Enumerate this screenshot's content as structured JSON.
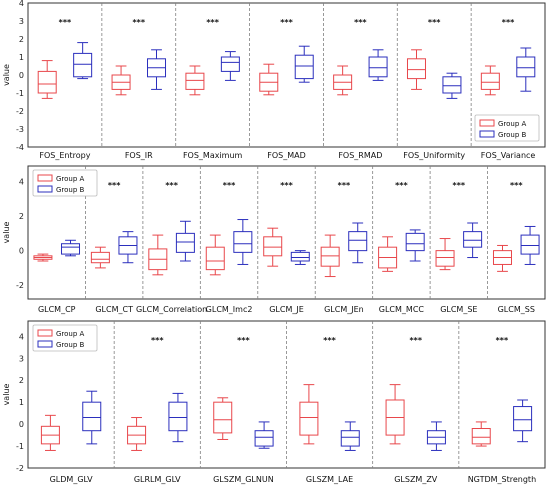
{
  "colors": {
    "group_a": "#e8474b",
    "group_b": "#2b2fbd"
  },
  "chart_data": [
    {
      "type": "box",
      "ylabel": "value",
      "ylim": [
        -4,
        4
      ],
      "yticks": [
        -4,
        -3,
        -2,
        -1,
        0,
        1,
        2,
        3,
        4
      ],
      "legend": {
        "placement": "bottom-right",
        "entries": [
          "Group A",
          "Group B"
        ]
      },
      "categories": [
        "FOS_Entropy",
        "FOS_IR",
        "FOS_Maximum",
        "FOS_MAD",
        "FOS_RMAD",
        "FOS_Uniformity",
        "FOS_Variance"
      ],
      "significance": [
        "***",
        "***",
        "***",
        "***",
        "***",
        "***",
        "***"
      ],
      "series": [
        {
          "name": "Group A",
          "boxes": [
            [
              -1.3,
              -1.0,
              -0.5,
              0.2,
              0.8
            ],
            [
              -1.1,
              -0.8,
              -0.4,
              0.0,
              0.5
            ],
            [
              -1.1,
              -0.8,
              -0.3,
              0.1,
              0.5
            ],
            [
              -1.1,
              -0.9,
              -0.4,
              0.1,
              0.6
            ],
            [
              -1.1,
              -0.8,
              -0.4,
              0.0,
              0.5
            ],
            [
              -0.8,
              -0.2,
              0.3,
              0.9,
              1.4
            ],
            [
              -1.1,
              -0.8,
              -0.4,
              0.1,
              0.5
            ]
          ]
        },
        {
          "name": "Group B",
          "boxes": [
            [
              -0.2,
              -0.1,
              0.6,
              1.2,
              1.8
            ],
            [
              -0.8,
              -0.1,
              0.4,
              0.9,
              1.4
            ],
            [
              -0.3,
              0.2,
              0.7,
              1.0,
              1.3
            ],
            [
              -0.4,
              -0.2,
              0.5,
              1.1,
              1.6
            ],
            [
              -0.3,
              -0.1,
              0.4,
              1.0,
              1.4
            ],
            [
              -1.3,
              -1.0,
              -0.6,
              -0.1,
              0.1
            ],
            [
              -0.9,
              -0.1,
              0.4,
              1.0,
              1.5
            ]
          ]
        }
      ]
    },
    {
      "type": "box",
      "ylabel": "value",
      "ylim": [
        -2.8,
        4.9
      ],
      "yticks": [
        -2,
        0,
        2,
        4
      ],
      "legend": {
        "placement": "top-left",
        "entries": [
          "Group A",
          "Group B"
        ]
      },
      "categories": [
        "GLCM_CP",
        "GLCM_CT",
        "GLCM_Correlation",
        "GLCM_Imc2",
        "GLCM_JE",
        "GLCM_JEn",
        "GLCM_MCC",
        "GLCM_SE",
        "GLCM_SS"
      ],
      "significance": [
        "***",
        "***",
        "***",
        "***",
        "***",
        "***",
        "***",
        "***",
        "***"
      ],
      "series": [
        {
          "name": "Group A",
          "boxes": [
            [
              -0.6,
              -0.5,
              -0.4,
              -0.3,
              -0.2
            ],
            [
              -1.0,
              -0.7,
              -0.5,
              -0.1,
              0.2
            ],
            [
              -1.4,
              -1.1,
              -0.5,
              0.1,
              0.9
            ],
            [
              -1.4,
              -1.1,
              -0.6,
              0.2,
              0.9
            ],
            [
              -0.9,
              -0.3,
              0.2,
              0.8,
              1.3
            ],
            [
              -1.5,
              -0.9,
              -0.3,
              0.2,
              0.9
            ],
            [
              -1.2,
              -1.0,
              -0.4,
              0.2,
              0.8
            ],
            [
              -1.1,
              -0.9,
              -0.4,
              0.0,
              0.7
            ],
            [
              -1.2,
              -0.8,
              -0.4,
              0.0,
              0.3
            ]
          ]
        },
        {
          "name": "Group B",
          "boxes": [
            [
              -0.3,
              -0.2,
              0.2,
              0.4,
              0.6
            ],
            [
              -0.7,
              -0.2,
              0.3,
              0.8,
              1.1
            ],
            [
              -0.6,
              -0.1,
              0.5,
              1.0,
              1.7
            ],
            [
              -0.8,
              -0.1,
              0.4,
              1.1,
              1.8
            ],
            [
              -0.8,
              -0.6,
              -0.4,
              -0.1,
              0.0
            ],
            [
              -0.7,
              0.0,
              0.6,
              1.1,
              1.6
            ],
            [
              -0.6,
              0.0,
              0.4,
              1.0,
              1.2
            ],
            [
              -0.4,
              0.2,
              0.6,
              1.1,
              1.6
            ],
            [
              -0.8,
              -0.2,
              0.3,
              0.9,
              1.4
            ]
          ]
        }
      ]
    },
    {
      "type": "box",
      "ylabel": "value",
      "ylim": [
        -2.0,
        4.7
      ],
      "yticks": [
        -2,
        -1,
        0,
        1,
        2,
        3,
        4
      ],
      "legend": {
        "placement": "top-left",
        "entries": [
          "Group A",
          "Group B"
        ]
      },
      "categories": [
        "GLDM_GLV",
        "GLRLM_GLV",
        "GLSZM_GLNUN",
        "GLSZM_LAE",
        "GLSZM_ZV",
        "NGTDM_Strength"
      ],
      "significance": [
        "",
        "***",
        "***",
        "***",
        "***",
        "***"
      ],
      "series": [
        {
          "name": "Group A",
          "boxes": [
            [
              -1.2,
              -0.9,
              -0.5,
              -0.1,
              0.4
            ],
            [
              -1.2,
              -0.9,
              -0.5,
              -0.1,
              0.3
            ],
            [
              -0.7,
              -0.4,
              0.2,
              1.0,
              1.2
            ],
            [
              -0.9,
              -0.5,
              0.3,
              1.0,
              1.8
            ],
            [
              -0.9,
              -0.5,
              0.3,
              1.1,
              1.8
            ],
            [
              -1.0,
              -0.9,
              -0.6,
              -0.2,
              0.1
            ]
          ]
        },
        {
          "name": "Group B",
          "boxes": [
            [
              -0.9,
              -0.3,
              0.3,
              1.0,
              1.5
            ],
            [
              -0.8,
              -0.3,
              0.3,
              1.0,
              1.4
            ],
            [
              -1.1,
              -1.0,
              -0.6,
              -0.3,
              0.1
            ],
            [
              -1.2,
              -1.0,
              -0.6,
              -0.3,
              0.1
            ],
            [
              -1.2,
              -0.9,
              -0.6,
              -0.3,
              0.1
            ],
            [
              -0.8,
              -0.3,
              0.2,
              0.8,
              1.1
            ]
          ]
        }
      ]
    }
  ]
}
